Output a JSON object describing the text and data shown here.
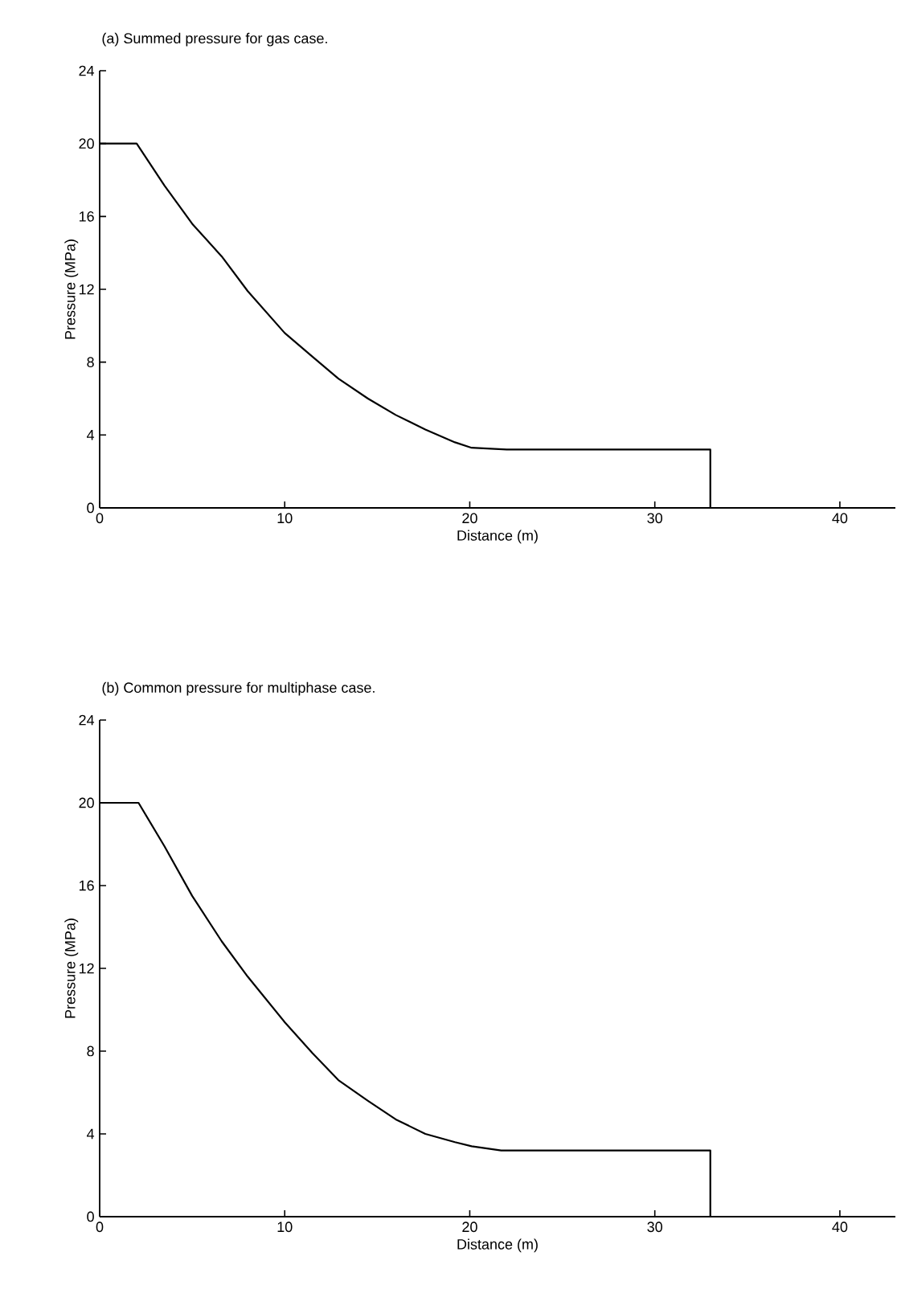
{
  "chart_data": [
    {
      "type": "line",
      "title": "(a) Summed pressure for gas case.",
      "xlabel": "Distance (m)",
      "ylabel": "Pressure (MPa)",
      "xlim": [
        0,
        43
      ],
      "ylim": [
        0,
        24
      ],
      "xticks": [
        0,
        10,
        20,
        30,
        40
      ],
      "yticks": [
        0,
        4,
        8,
        12,
        16,
        20,
        24
      ],
      "marker": "none",
      "line_style": "solid",
      "x": [
        0,
        2,
        3.5,
        5,
        6.6,
        8,
        10,
        11.5,
        12.9,
        14.5,
        16,
        17.6,
        19.2,
        20.1,
        22,
        33,
        33,
        43
      ],
      "series": [
        {
          "color": "#000000",
          "values": [
            20,
            20,
            17.7,
            15.6,
            13.8,
            11.9,
            9.6,
            8.3,
            7.1,
            6.0,
            5.1,
            4.3,
            3.6,
            3.3,
            3.2,
            3.2,
            0,
            0
          ]
        }
      ]
    },
    {
      "type": "line",
      "title": "(b) Common pressure for multiphase case.",
      "xlabel": "Distance (m)",
      "ylabel": "Pressure (MPa)",
      "xlim": [
        0,
        43
      ],
      "ylim": [
        0,
        24
      ],
      "xticks": [
        0,
        10,
        20,
        30,
        40
      ],
      "yticks": [
        0,
        4,
        8,
        12,
        16,
        20,
        24
      ],
      "marker": "none",
      "line_style": "solid",
      "x": [
        0,
        2.1,
        3.5,
        5,
        6.6,
        8,
        10,
        11.5,
        12.9,
        14.5,
        16,
        17.6,
        19.2,
        20.1,
        21.7,
        33,
        33,
        43
      ],
      "series": [
        {
          "color": "#000000",
          "values": [
            20,
            20,
            17.9,
            15.5,
            13.3,
            11.6,
            9.4,
            7.9,
            6.6,
            5.6,
            4.7,
            4.0,
            3.6,
            3.4,
            3.2,
            3.2,
            0,
            0
          ]
        }
      ]
    }
  ]
}
